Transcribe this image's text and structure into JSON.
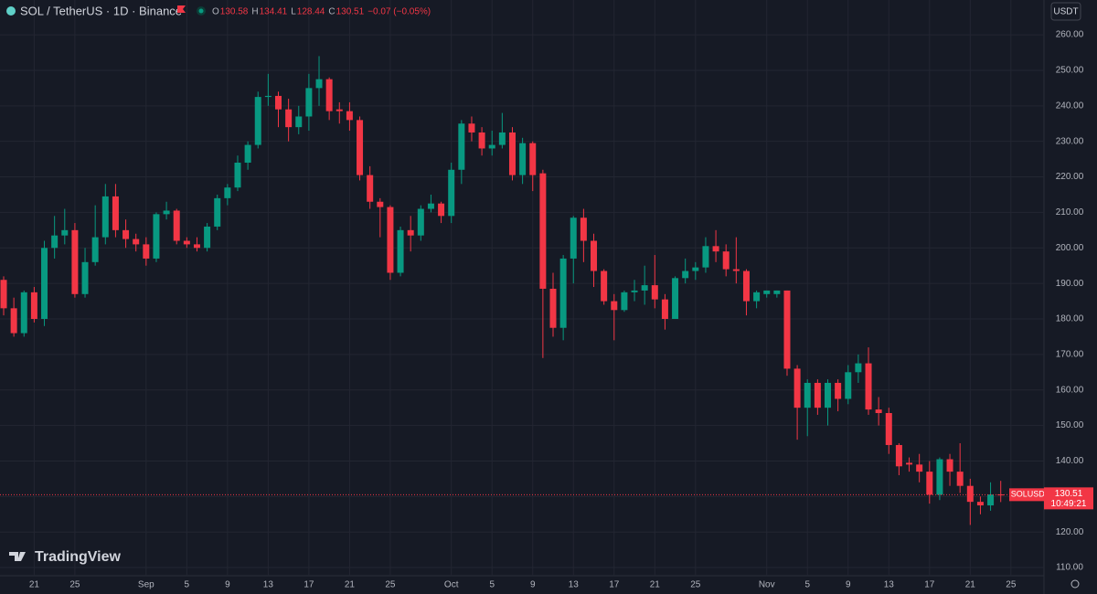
{
  "chart_data": {
    "type": "candlestick",
    "title": "SOL / TetherUS · 1D · Binance",
    "ohlc_letters": [
      "O",
      "H",
      "L",
      "C"
    ],
    "change": "−0.07 (−0.05%)",
    "symbol_label": "SOLUSDT",
    "countdown": "10:49:21",
    "currency": "USDT",
    "watermark": "TradingView",
    "up_color": "#089981",
    "down_color": "#f23645",
    "grid": true,
    "open": [
      191,
      183,
      176,
      187.5,
      180,
      200,
      203.5,
      205,
      187,
      196,
      203,
      214.5,
      205,
      202.5,
      201,
      197,
      209.5,
      210.5,
      202,
      201,
      200,
      206,
      214,
      217,
      224,
      229,
      242.5,
      242.8,
      239,
      234,
      237,
      245,
      247.5,
      239,
      238.5,
      236,
      220.5,
      213,
      211.5,
      193,
      205,
      203.5,
      211,
      212.5,
      209,
      222,
      235,
      232.5,
      228,
      229,
      232.5,
      220.5,
      229.5,
      221,
      188.5,
      177.5,
      197,
      208.5,
      202,
      193.5,
      185,
      182.5,
      187.5,
      188,
      189.5,
      185.5,
      180,
      191.5,
      193.5,
      194.5,
      200.5,
      199,
      194,
      193.5,
      185,
      187,
      187,
      188,
      166,
      155,
      162,
      155,
      162,
      157.5,
      165,
      167.5,
      154.5,
      153.5,
      144.5,
      139.5,
      139,
      137,
      130.5,
      140.5,
      137,
      133,
      128.5,
      127.5,
      130.58
    ],
    "high": [
      192,
      186,
      188,
      189,
      202,
      209,
      211,
      207,
      200,
      212,
      218,
      218,
      208,
      204,
      203,
      210,
      213,
      211,
      203,
      203,
      207,
      215,
      218,
      226,
      230,
      244,
      249,
      244,
      242,
      240,
      249,
      254,
      248,
      241,
      241,
      237,
      223,
      214,
      212,
      206,
      209,
      212,
      215,
      213,
      224,
      236,
      237,
      234,
      233,
      238,
      234,
      231,
      230,
      222,
      193,
      198,
      209,
      211,
      204,
      194,
      187,
      188,
      191,
      195,
      198,
      187,
      192,
      197,
      196,
      203,
      205,
      201,
      203,
      194,
      188,
      188,
      188,
      188,
      167,
      163,
      163,
      163,
      163,
      167,
      170,
      172,
      158,
      155,
      145,
      141,
      142,
      140,
      141,
      142,
      145,
      135,
      130,
      134,
      134.41
    ],
    "low": [
      181,
      175,
      175,
      179,
      178,
      197,
      201,
      186,
      186,
      195,
      201,
      203,
      200,
      199,
      195,
      196,
      208,
      201,
      200,
      199,
      199,
      205,
      212,
      216,
      222,
      228,
      240,
      234,
      230,
      232,
      233,
      240,
      236,
      235,
      233,
      219,
      211,
      203,
      191,
      192,
      199,
      202,
      210,
      207,
      207,
      218,
      230,
      226,
      226,
      228,
      219,
      218,
      216,
      169,
      175,
      174,
      190,
      196,
      189,
      184,
      174,
      182,
      185,
      184,
      183,
      177,
      180,
      190,
      191,
      193,
      196,
      192,
      190,
      181,
      183,
      186,
      186,
      164,
      146,
      147,
      153,
      150,
      154,
      156,
      162,
      153,
      150,
      142,
      136,
      137,
      134,
      128,
      129,
      133,
      131,
      122,
      125,
      126,
      128.44
    ],
    "close": [
      183,
      176,
      187.5,
      180,
      200,
      203.5,
      205,
      187,
      196,
      203,
      214.5,
      205,
      202.5,
      201,
      197,
      209.5,
      210.5,
      202,
      201,
      200,
      206,
      214,
      217,
      224,
      229,
      242.5,
      242.8,
      239,
      234,
      237,
      245,
      247.5,
      238.5,
      238.5,
      236,
      220.5,
      213,
      211.5,
      193,
      205,
      203.5,
      211,
      212.5,
      209,
      222,
      235,
      232.5,
      228,
      229,
      232.5,
      220.5,
      229.5,
      220.5,
      188.5,
      177.5,
      197,
      208.5,
      202,
      193.5,
      185,
      182.5,
      187.5,
      188,
      189.5,
      185.5,
      180,
      191.5,
      193.5,
      194.5,
      200.5,
      199,
      194,
      193.5,
      185,
      187.5,
      188,
      188,
      166,
      155,
      162,
      155,
      162,
      157.5,
      165,
      167.5,
      154.5,
      153.5,
      144.5,
      138.5,
      139,
      137,
      130.5,
      140.5,
      137,
      133,
      128.5,
      127.5,
      130.58,
      130.51
    ],
    "xlim": [
      -0.36,
      102.25
    ],
    "xticks": [
      {
        "value": 3,
        "label": "21"
      },
      {
        "value": 7,
        "label": "25"
      },
      {
        "value": 14,
        "label": "Sep"
      },
      {
        "value": 18,
        "label": "5"
      },
      {
        "value": 22,
        "label": "9"
      },
      {
        "value": 26,
        "label": "13"
      },
      {
        "value": 30,
        "label": "17"
      },
      {
        "value": 34,
        "label": "21"
      },
      {
        "value": 38,
        "label": "25"
      },
      {
        "value": 44,
        "label": "Oct"
      },
      {
        "value": 48,
        "label": "5"
      },
      {
        "value": 52,
        "label": "9"
      },
      {
        "value": 56,
        "label": "13"
      },
      {
        "value": 60,
        "label": "17"
      },
      {
        "value": 64,
        "label": "21"
      },
      {
        "value": 68,
        "label": "25"
      },
      {
        "value": 75,
        "label": "Nov"
      },
      {
        "value": 79,
        "label": "5"
      },
      {
        "value": 83,
        "label": "9"
      },
      {
        "value": 87,
        "label": "13"
      },
      {
        "value": 91,
        "label": "17"
      },
      {
        "value": 95,
        "label": "21"
      },
      {
        "value": 99,
        "label": "25"
      }
    ],
    "ylim": [
      107.7,
      269.8
    ],
    "yticks": [
      {
        "value": 110,
        "label": "110.00"
      },
      {
        "value": 120,
        "label": "120.00"
      },
      {
        "value": 130,
        "label": "130.00"
      },
      {
        "value": 140,
        "label": "140.00"
      },
      {
        "value": 150,
        "label": "150.00"
      },
      {
        "value": 160,
        "label": "160.00"
      },
      {
        "value": 170,
        "label": "170.00"
      },
      {
        "value": 180,
        "label": "180.00"
      },
      {
        "value": 190,
        "label": "190.00"
      },
      {
        "value": 200,
        "label": "200.00"
      },
      {
        "value": 210,
        "label": "210.00"
      },
      {
        "value": 220,
        "label": "220.00"
      },
      {
        "value": 230,
        "label": "230.00"
      },
      {
        "value": 240,
        "label": "240.00"
      },
      {
        "value": 250,
        "label": "250.00"
      },
      {
        "value": 260,
        "label": "260.00"
      }
    ]
  }
}
